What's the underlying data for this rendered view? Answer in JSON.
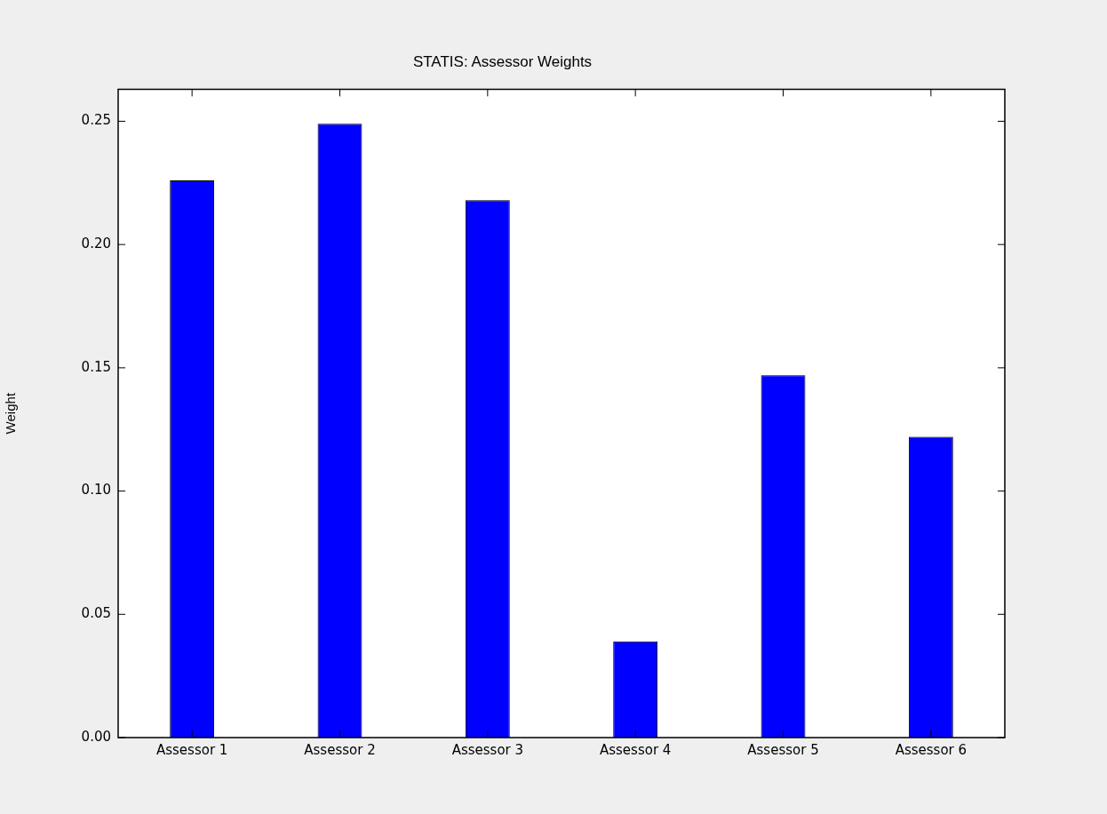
{
  "chart_data": {
    "type": "bar",
    "title": "STATIS: Assessor Weights",
    "ylabel": "Weight",
    "categories": [
      "Assessor 1",
      "Assessor 2",
      "Assessor 3",
      "Assessor 4",
      "Assessor 5",
      "Assessor 6"
    ],
    "values": [
      0.226,
      0.249,
      0.218,
      0.039,
      0.147,
      0.122
    ],
    "color": "#0000ff",
    "ylim": [
      0,
      0.263
    ],
    "yticks": [
      {
        "value": 0,
        "label": "0.00"
      },
      {
        "value": 0.05,
        "label": "0.05"
      },
      {
        "value": 0.1,
        "label": "0.10"
      },
      {
        "value": 0.15,
        "label": "0.15"
      },
      {
        "value": 0.2,
        "label": "0.20"
      },
      {
        "value": 0.25,
        "label": "0.25"
      }
    ],
    "grid": false,
    "legend": false
  }
}
